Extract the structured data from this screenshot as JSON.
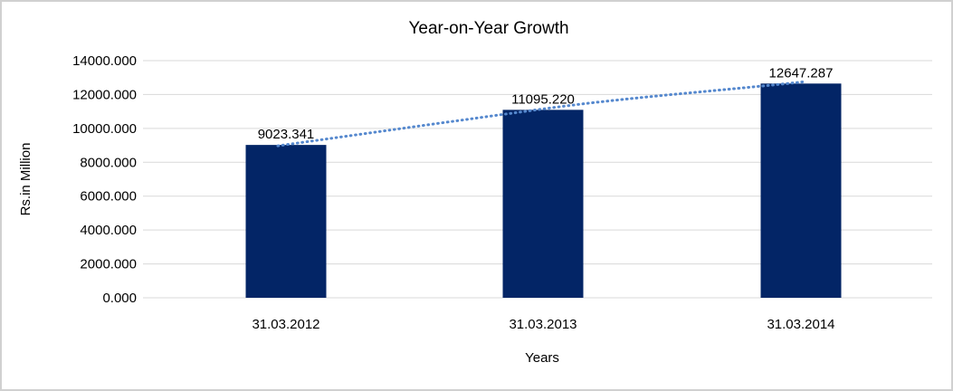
{
  "chart_data": {
    "type": "bar",
    "title": "Year-on-Year Growth",
    "xlabel": "Years",
    "ylabel": "Rs.in Million",
    "categories": [
      "31.03.2012",
      "31.03.2013",
      "31.03.2014"
    ],
    "values": [
      9023.341,
      11095.22,
      12647.287
    ],
    "data_labels": [
      "9023.341",
      "11095.220",
      "12647.287"
    ],
    "y_ticks": [
      "0.000",
      "2000.000",
      "4000.000",
      "6000.000",
      "8000.000",
      "10000.000",
      "12000.000",
      "14000.000"
    ],
    "ylim": [
      0,
      14000
    ],
    "y_tick_step": 2000,
    "grid": true,
    "legend": "none",
    "series": [
      {
        "name": "Rs.in Million",
        "values": [
          9023.341,
          11095.22,
          12647.287
        ]
      }
    ],
    "trendline": {
      "type": "dotted",
      "follows": "bar-tops",
      "color": "#5588CE"
    },
    "colors": {
      "bar": "#032566",
      "trendline": "#5588CE",
      "gridline": "#D9D9D9",
      "text": "#000000",
      "background": "#FFFFFF",
      "frame_border": "#D0D0D0"
    }
  }
}
